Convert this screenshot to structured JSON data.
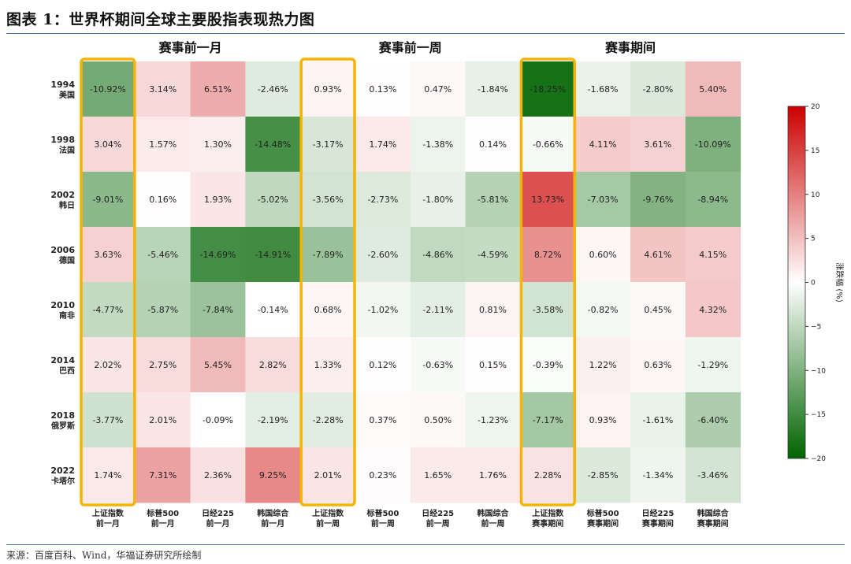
{
  "figure_title": "图表 1：世界杯期间全球主要股指表现热力图",
  "source_note": "来源：百度百科、Wind，华福证券研究所绘制",
  "chart_data": {
    "type": "heatmap",
    "title": "",
    "group_labels": [
      "赛事前一月",
      "赛事前一周",
      "赛事期间"
    ],
    "rows": [
      {
        "year": "1994",
        "country": "美国"
      },
      {
        "year": "1998",
        "country": "法国"
      },
      {
        "year": "2002",
        "country": "韩日"
      },
      {
        "year": "2006",
        "country": "德国"
      },
      {
        "year": "2010",
        "country": "南非"
      },
      {
        "year": "2014",
        "country": "巴西"
      },
      {
        "year": "2018",
        "country": "俄罗斯"
      },
      {
        "year": "2022",
        "country": "卡塔尔"
      }
    ],
    "columns": [
      {
        "index": "上证指数",
        "period": "前一月"
      },
      {
        "index": "标普500",
        "period": "前一月"
      },
      {
        "index": "日经225",
        "period": "前一月"
      },
      {
        "index": "韩国综合",
        "period": "前一月"
      },
      {
        "index": "上证指数",
        "period": "前一周"
      },
      {
        "index": "标普500",
        "period": "前一周"
      },
      {
        "index": "日经225",
        "period": "前一周"
      },
      {
        "index": "韩国综合",
        "period": "前一周"
      },
      {
        "index": "上证指数",
        "period": "赛事期间"
      },
      {
        "index": "标普500",
        "period": "赛事期间"
      },
      {
        "index": "日经225",
        "period": "赛事期间"
      },
      {
        "index": "韩国综合",
        "period": "赛事期间"
      }
    ],
    "values": [
      [
        -10.92,
        3.14,
        6.51,
        -2.46,
        0.93,
        0.13,
        0.47,
        -1.84,
        -18.25,
        -1.68,
        -2.8,
        5.4
      ],
      [
        3.04,
        1.57,
        1.3,
        -14.48,
        -3.17,
        1.74,
        -1.38,
        0.14,
        -0.66,
        4.11,
        3.61,
        -10.09
      ],
      [
        -9.01,
        0.16,
        1.93,
        -5.02,
        -3.56,
        -2.73,
        -1.8,
        -5.81,
        13.73,
        -7.03,
        -9.76,
        -8.94
      ],
      [
        3.63,
        -5.46,
        -14.69,
        -14.91,
        -7.89,
        -2.6,
        -4.86,
        -4.59,
        8.72,
        0.6,
        4.61,
        4.15
      ],
      [
        -4.77,
        -5.87,
        -7.84,
        -0.14,
        0.68,
        -1.02,
        -2.11,
        0.81,
        -3.58,
        -0.82,
        0.45,
        4.32
      ],
      [
        2.02,
        2.75,
        5.45,
        2.82,
        1.33,
        0.12,
        -0.63,
        0.15,
        -0.39,
        1.22,
        0.63,
        -1.29
      ],
      [
        -3.77,
        2.01,
        -0.09,
        -2.19,
        -2.28,
        0.37,
        0.5,
        -1.23,
        -7.17,
        0.93,
        -1.61,
        -6.4
      ],
      [
        1.74,
        7.31,
        2.36,
        9.25,
        2.01,
        0.23,
        1.65,
        1.76,
        2.28,
        -2.85,
        -1.34,
        -3.46
      ]
    ],
    "value_suffix": "%",
    "highlighted_columns": [
      0,
      4,
      8
    ],
    "highlight_color": "#f5b400",
    "colorbar": {
      "label": "涨跌幅 (%)",
      "min": -20,
      "max": 20,
      "ticks": [
        20,
        15,
        10,
        5,
        0,
        -5,
        -10,
        -15,
        -20
      ],
      "colors": {
        "min": "#006400",
        "mid": "#ffffff",
        "max": "#cc0000"
      }
    }
  }
}
